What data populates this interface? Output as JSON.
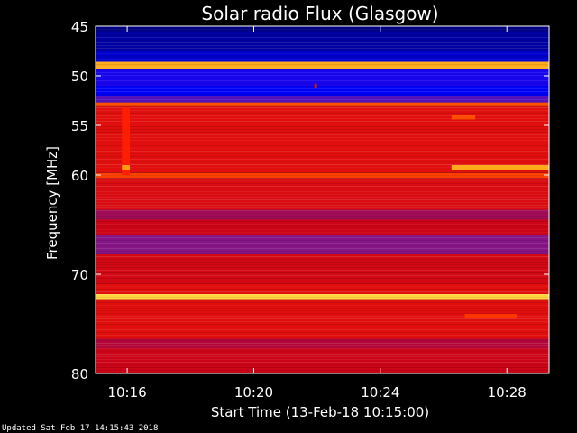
{
  "chart_data": {
    "type": "heatmap",
    "title": "Solar radio Flux (Glasgow)",
    "xlabel": "Start Time (13-Feb-18 10:15:00)",
    "ylabel": "Frequency [MHz]",
    "updated": "Updated Sat Feb 17 14:15:43 2018",
    "xlim": [
      "10:15:00",
      "10:29:20"
    ],
    "ylim": [
      45,
      80
    ],
    "x_ticks": [
      "10:16",
      "10:20",
      "10:24",
      "10:28"
    ],
    "y_ticks": [
      45,
      50,
      55,
      60,
      70,
      80
    ],
    "colormap": [
      "#00004a",
      "#0000ff",
      "#7a1a9a",
      "#c4001a",
      "#ff2000",
      "#ff8a00",
      "#ffff60"
    ],
    "freq_bands": [
      {
        "from": 45.0,
        "to": 45.5,
        "level": 0.05
      },
      {
        "from": 45.5,
        "to": 47.5,
        "level": 0.08
      },
      {
        "from": 47.5,
        "to": 48.6,
        "level": 0.12
      },
      {
        "from": 48.6,
        "to": 49.3,
        "level": 0.88
      },
      {
        "from": 49.3,
        "to": 51.0,
        "level": 0.2
      },
      {
        "from": 51.0,
        "to": 52.0,
        "level": 0.16
      },
      {
        "from": 52.0,
        "to": 52.7,
        "level": 0.28
      },
      {
        "from": 52.7,
        "to": 53.1,
        "level": 0.74
      },
      {
        "from": 53.1,
        "to": 59.8,
        "level": 0.58
      },
      {
        "from": 59.8,
        "to": 60.3,
        "level": 0.72
      },
      {
        "from": 60.3,
        "to": 63.5,
        "level": 0.56
      },
      {
        "from": 63.5,
        "to": 64.5,
        "level": 0.42
      },
      {
        "from": 64.5,
        "to": 66.0,
        "level": 0.52
      },
      {
        "from": 66.0,
        "to": 68.0,
        "level": 0.36
      },
      {
        "from": 68.0,
        "to": 71.0,
        "level": 0.54
      },
      {
        "from": 71.0,
        "to": 72.0,
        "level": 0.58
      },
      {
        "from": 72.0,
        "to": 72.6,
        "level": 0.94
      },
      {
        "from": 72.6,
        "to": 76.5,
        "level": 0.58
      },
      {
        "from": 76.5,
        "to": 77.5,
        "level": 0.46
      },
      {
        "from": 77.5,
        "to": 80.0,
        "level": 0.52
      }
    ],
    "features": [
      {
        "time_from": "10:15:50",
        "time_to": "10:16:05",
        "freq_from": 53.2,
        "freq_to": 60.0,
        "level": 0.66
      },
      {
        "time_from": "10:15:50",
        "time_to": "10:16:05",
        "freq_from": 59.0,
        "freq_to": 59.5,
        "level": 0.86
      },
      {
        "time_from": "10:26:15",
        "time_to": "10:29:20",
        "freq_from": 59.0,
        "freq_to": 59.5,
        "level": 0.88
      },
      {
        "time_from": "10:26:15",
        "time_to": "10:27:00",
        "freq_from": 54.0,
        "freq_to": 54.4,
        "level": 0.74
      },
      {
        "time_from": "10:26:40",
        "time_to": "10:28:20",
        "freq_from": 74.0,
        "freq_to": 74.4,
        "level": 0.7
      },
      {
        "time_from": "10:21:55",
        "time_to": "10:22:00",
        "freq_from": 50.8,
        "freq_to": 51.2,
        "level": 0.6
      }
    ]
  }
}
